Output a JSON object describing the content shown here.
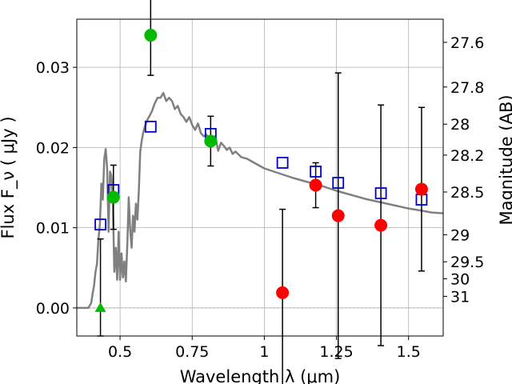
{
  "chart_data": {
    "type": "scatter",
    "xlabel": "Wavelength  λ (μm)",
    "ylabel": "Flux  F_ν  ( μJy )",
    "ylabel_right": "Magnitude (AB)",
    "xlim": [
      0.35,
      1.62
    ],
    "ylim": [
      -0.0035,
      0.036
    ],
    "grid": true,
    "x_ticks": [
      {
        "value": 0.5,
        "label": "0.5"
      },
      {
        "value": 0.75,
        "label": "0.75"
      },
      {
        "value": 1.0,
        "label": "1"
      },
      {
        "value": 1.25,
        "label": "1.25"
      },
      {
        "value": 1.5,
        "label": "1.5"
      }
    ],
    "y_ticks": [
      {
        "value": 0.0,
        "label": "0.00"
      },
      {
        "value": 0.01,
        "label": "0.01"
      },
      {
        "value": 0.02,
        "label": "0.02"
      },
      {
        "value": 0.03,
        "label": "0.03"
      }
    ],
    "right_ticks": [
      {
        "label": "27.6",
        "mag": 27.6
      },
      {
        "label": "27.8",
        "mag": 27.8
      },
      {
        "label": "28",
        "mag": 28.0
      },
      {
        "label": "28.2",
        "mag": 28.2
      },
      {
        "label": "28.5",
        "mag": 28.5
      },
      {
        "label": "29",
        "mag": 29.0
      },
      {
        "label": "29.5",
        "mag": 29.5
      },
      {
        "label": "30",
        "mag": 30.0
      },
      {
        "label": "31",
        "mag": 31.0
      }
    ],
    "colors": {
      "model": "#808080",
      "observed_green": "#00bb00",
      "observed_red": "#ff0000",
      "model_photometry": "#0000cc",
      "errorbar": "#000000",
      "grid": "#b0b0b0"
    },
    "model_sed": {
      "x": [
        0.35,
        0.39,
        0.4,
        0.405,
        0.41,
        0.415,
        0.42,
        0.425,
        0.43,
        0.435,
        0.44,
        0.445,
        0.45,
        0.455,
        0.46,
        0.465,
        0.47,
        0.475,
        0.48,
        0.485,
        0.49,
        0.495,
        0.5,
        0.505,
        0.51,
        0.515,
        0.52,
        0.525,
        0.53,
        0.535,
        0.54,
        0.545,
        0.55,
        0.555,
        0.56,
        0.565,
        0.57,
        0.575,
        0.58,
        0.585,
        0.59,
        0.595,
        0.6,
        0.61,
        0.62,
        0.63,
        0.64,
        0.65,
        0.66,
        0.67,
        0.68,
        0.69,
        0.7,
        0.71,
        0.72,
        0.73,
        0.74,
        0.75,
        0.76,
        0.77,
        0.78,
        0.79,
        0.8,
        0.81,
        0.82,
        0.83,
        0.84,
        0.85,
        0.86,
        0.87,
        0.88,
        0.89,
        0.9,
        0.92,
        0.94,
        0.96,
        0.98,
        1.0,
        1.05,
        1.1,
        1.15,
        1.2,
        1.25,
        1.3,
        1.35,
        1.4,
        1.45,
        1.5,
        1.55,
        1.58,
        1.62
      ],
      "y": [
        0.0,
        0.0,
        0.0006,
        0.0018,
        0.0028,
        0.0045,
        0.0055,
        0.0085,
        0.0105,
        0.0155,
        0.0135,
        0.0185,
        0.0198,
        0.0175,
        0.0095,
        0.017,
        0.0165,
        0.013,
        0.0045,
        0.0075,
        0.0035,
        0.0095,
        0.0035,
        0.0068,
        0.0038,
        0.0058,
        0.0033,
        0.0078,
        0.0138,
        0.0098,
        0.0075,
        0.0115,
        0.0095,
        0.013,
        0.011,
        0.0145,
        0.0195,
        0.0208,
        0.0218,
        0.0225,
        0.023,
        0.0235,
        0.0238,
        0.0245,
        0.0255,
        0.0262,
        0.0262,
        0.0268,
        0.0258,
        0.0262,
        0.0258,
        0.0248,
        0.0252,
        0.0242,
        0.0238,
        0.0232,
        0.0238,
        0.0228,
        0.0222,
        0.023,
        0.0218,
        0.0214,
        0.0216,
        0.0208,
        0.0204,
        0.0214,
        0.0196,
        0.0206,
        0.0202,
        0.0197,
        0.02,
        0.0192,
        0.0195,
        0.0188,
        0.0186,
        0.0182,
        0.0178,
        0.0174,
        0.0168,
        0.0162,
        0.0157,
        0.0152,
        0.0146,
        0.0141,
        0.0136,
        0.0132,
        0.0128,
        0.0124,
        0.0121,
        0.0119,
        0.0118
      ]
    },
    "observed_green": [
      {
        "x": 0.477,
        "y": 0.0138,
        "err_low": 0.004,
        "err_high": 0.004
      },
      {
        "x": 0.606,
        "y": 0.034,
        "err_low": 0.005,
        "err_high": 0.005
      },
      {
        "x": 0.814,
        "y": 0.0208,
        "err_low": 0.0031,
        "err_high": 0.0031
      }
    ],
    "observed_red": [
      {
        "x": 1.063,
        "y": 0.0019,
        "err_low": 0.0124,
        "err_high": 0.0104
      },
      {
        "x": 1.178,
        "y": 0.0153,
        "err_low": 0.0028,
        "err_high": 0.0028
      },
      {
        "x": 1.256,
        "y": 0.0115,
        "err_low": 0.0178,
        "err_high": 0.0178
      },
      {
        "x": 1.404,
        "y": 0.0103,
        "err_low": 0.015,
        "err_high": 0.015
      },
      {
        "x": 1.545,
        "y": 0.0148,
        "err_low": 0.0102,
        "err_high": 0.0102
      }
    ],
    "upper_limit": [
      {
        "x": 0.432,
        "y": 0.0,
        "err_low": 0.0035,
        "err_high": 0.0086
      }
    ],
    "model_photometry": [
      {
        "x": 0.432,
        "y": 0.0104
      },
      {
        "x": 0.477,
        "y": 0.0147
      },
      {
        "x": 0.606,
        "y": 0.0226
      },
      {
        "x": 0.814,
        "y": 0.0217
      },
      {
        "x": 1.063,
        "y": 0.0181
      },
      {
        "x": 1.178,
        "y": 0.017
      },
      {
        "x": 1.256,
        "y": 0.0156
      },
      {
        "x": 1.404,
        "y": 0.0143
      },
      {
        "x": 1.545,
        "y": 0.0135
      }
    ]
  }
}
